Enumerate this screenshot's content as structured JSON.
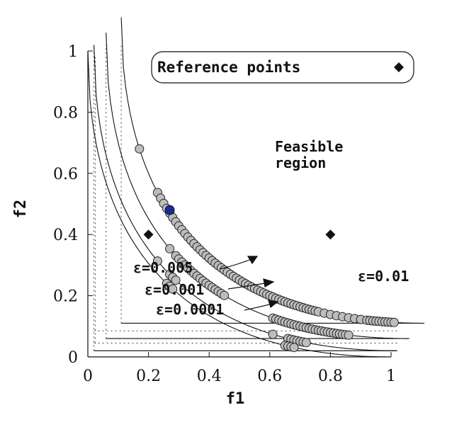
{
  "chart_data": {
    "type": "scatter",
    "title": "",
    "xlabel": "f1",
    "ylabel": "f2",
    "xlim": [
      0,
      1
    ],
    "ylim": [
      0,
      1
    ],
    "xticks": [
      "0",
      "0.2",
      "0.4",
      "0.6",
      "0.8",
      "1"
    ],
    "yticks": [
      "0",
      "0.2",
      "0.4",
      "0.6",
      "0.8",
      "1"
    ],
    "legend": {
      "label": "Reference points",
      "placement": "top"
    },
    "reference_points": [
      {
        "x": 0.2,
        "y": 0.4
      },
      {
        "x": 0.8,
        "y": 0.4
      }
    ],
    "feasible_region_label": "Feasible region",
    "fronts": [
      {
        "name": "ε=0.01",
        "offset": 0.11,
        "points_f1": [
          0.17,
          0.23,
          0.24,
          0.25,
          0.26,
          0.27,
          0.28,
          0.29,
          0.3,
          0.31,
          0.32,
          0.33,
          0.34,
          0.35,
          0.36,
          0.37,
          0.38,
          0.39,
          0.4,
          0.41,
          0.42,
          0.43,
          0.44,
          0.45,
          0.46,
          0.47,
          0.48,
          0.49,
          0.5,
          0.51,
          0.52,
          0.53,
          0.54,
          0.55,
          0.56,
          0.57,
          0.58,
          0.59,
          0.6,
          0.61,
          0.62,
          0.63,
          0.64,
          0.65,
          0.66,
          0.67,
          0.68,
          0.69,
          0.7,
          0.71,
          0.72,
          0.73,
          0.74,
          0.75,
          0.76,
          0.78,
          0.8,
          0.82,
          0.84,
          0.86,
          0.88,
          0.9,
          0.92,
          0.93,
          0.94,
          0.95,
          0.96,
          0.97,
          0.98,
          0.99,
          1.0,
          1.01
        ]
      },
      {
        "name": "ε=0.005",
        "offset": 0.06,
        "points_f1": [
          0.27,
          0.29,
          0.3,
          0.31,
          0.32,
          0.33,
          0.34,
          0.35,
          0.36,
          0.37,
          0.38,
          0.39,
          0.4,
          0.41,
          0.42,
          0.43,
          0.44,
          0.45,
          0.61,
          0.62,
          0.63,
          0.64,
          0.65,
          0.66,
          0.67,
          0.68,
          0.69,
          0.7,
          0.71,
          0.72,
          0.73,
          0.74,
          0.75,
          0.76,
          0.77,
          0.78,
          0.79,
          0.8,
          0.81,
          0.82,
          0.83,
          0.84,
          0.85,
          0.86
        ]
      },
      {
        "name": "ε=0.001",
        "offset": 0.02,
        "points_f1": [
          0.23,
          0.27,
          0.28,
          0.29,
          0.61,
          0.66,
          0.67,
          0.68,
          0.69,
          0.7,
          0.71,
          0.72
        ]
      },
      {
        "name": "ε=0.0001",
        "offset": 0.0,
        "points_f1": [
          0.26,
          0.27,
          0.28,
          0.65,
          0.66,
          0.67,
          0.68
        ]
      }
    ],
    "highlight_point": {
      "x": 0.27,
      "y": 0.48,
      "color": "#1f2a8a"
    },
    "annotations": [
      "ε=0.01",
      "ε=0.005",
      "ε=0.001",
      "ε=0.0001"
    ]
  }
}
